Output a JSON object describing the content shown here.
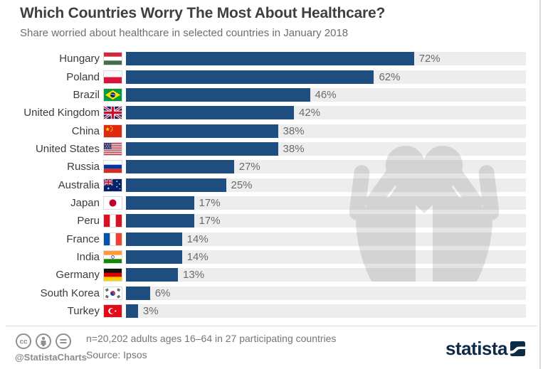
{
  "header": {
    "title": "Which Countries Worry The Most About Healthcare?",
    "subtitle": "Share worried about healthcare in selected countries in January 2018"
  },
  "chart_data": {
    "type": "bar",
    "orientation": "horizontal",
    "title": "Which Countries Worry The Most About Healthcare?",
    "subtitle": "Share worried about healthcare in selected countries in January 2018",
    "categories": [
      "Hungary",
      "Poland",
      "Brazil",
      "United Kingdom",
      "China",
      "United States",
      "Russia",
      "Australia",
      "Japan",
      "Peru",
      "France",
      "India",
      "Germany",
      "South Korea",
      "Turkey"
    ],
    "values": [
      72,
      62,
      46,
      42,
      38,
      38,
      27,
      25,
      17,
      17,
      14,
      14,
      13,
      6,
      3
    ],
    "unit": "%",
    "xlim": [
      0,
      100
    ],
    "grid": false,
    "legend": false,
    "bar_color": "#1e4e80",
    "track_color": "#ececec",
    "flags": [
      "hungary",
      "poland",
      "brazil",
      "united-kingdom",
      "china",
      "united-states",
      "russia",
      "australia",
      "japan",
      "peru",
      "france",
      "india",
      "germany",
      "south-korea",
      "turkey"
    ]
  },
  "watermark": {
    "name": "hands-holding-heart",
    "color": "#e3e3e3"
  },
  "footer": {
    "license_icons": [
      "cc-icon",
      "attribution-person-icon",
      "no-derivatives-equals-icon"
    ],
    "handle": "@StatistaCharts",
    "note": "n=20,202 adults ages 16–64 in 27 participating countries",
    "source": "Source: Ipsos",
    "brand": "statista",
    "brand_color": "#0c2b48"
  }
}
